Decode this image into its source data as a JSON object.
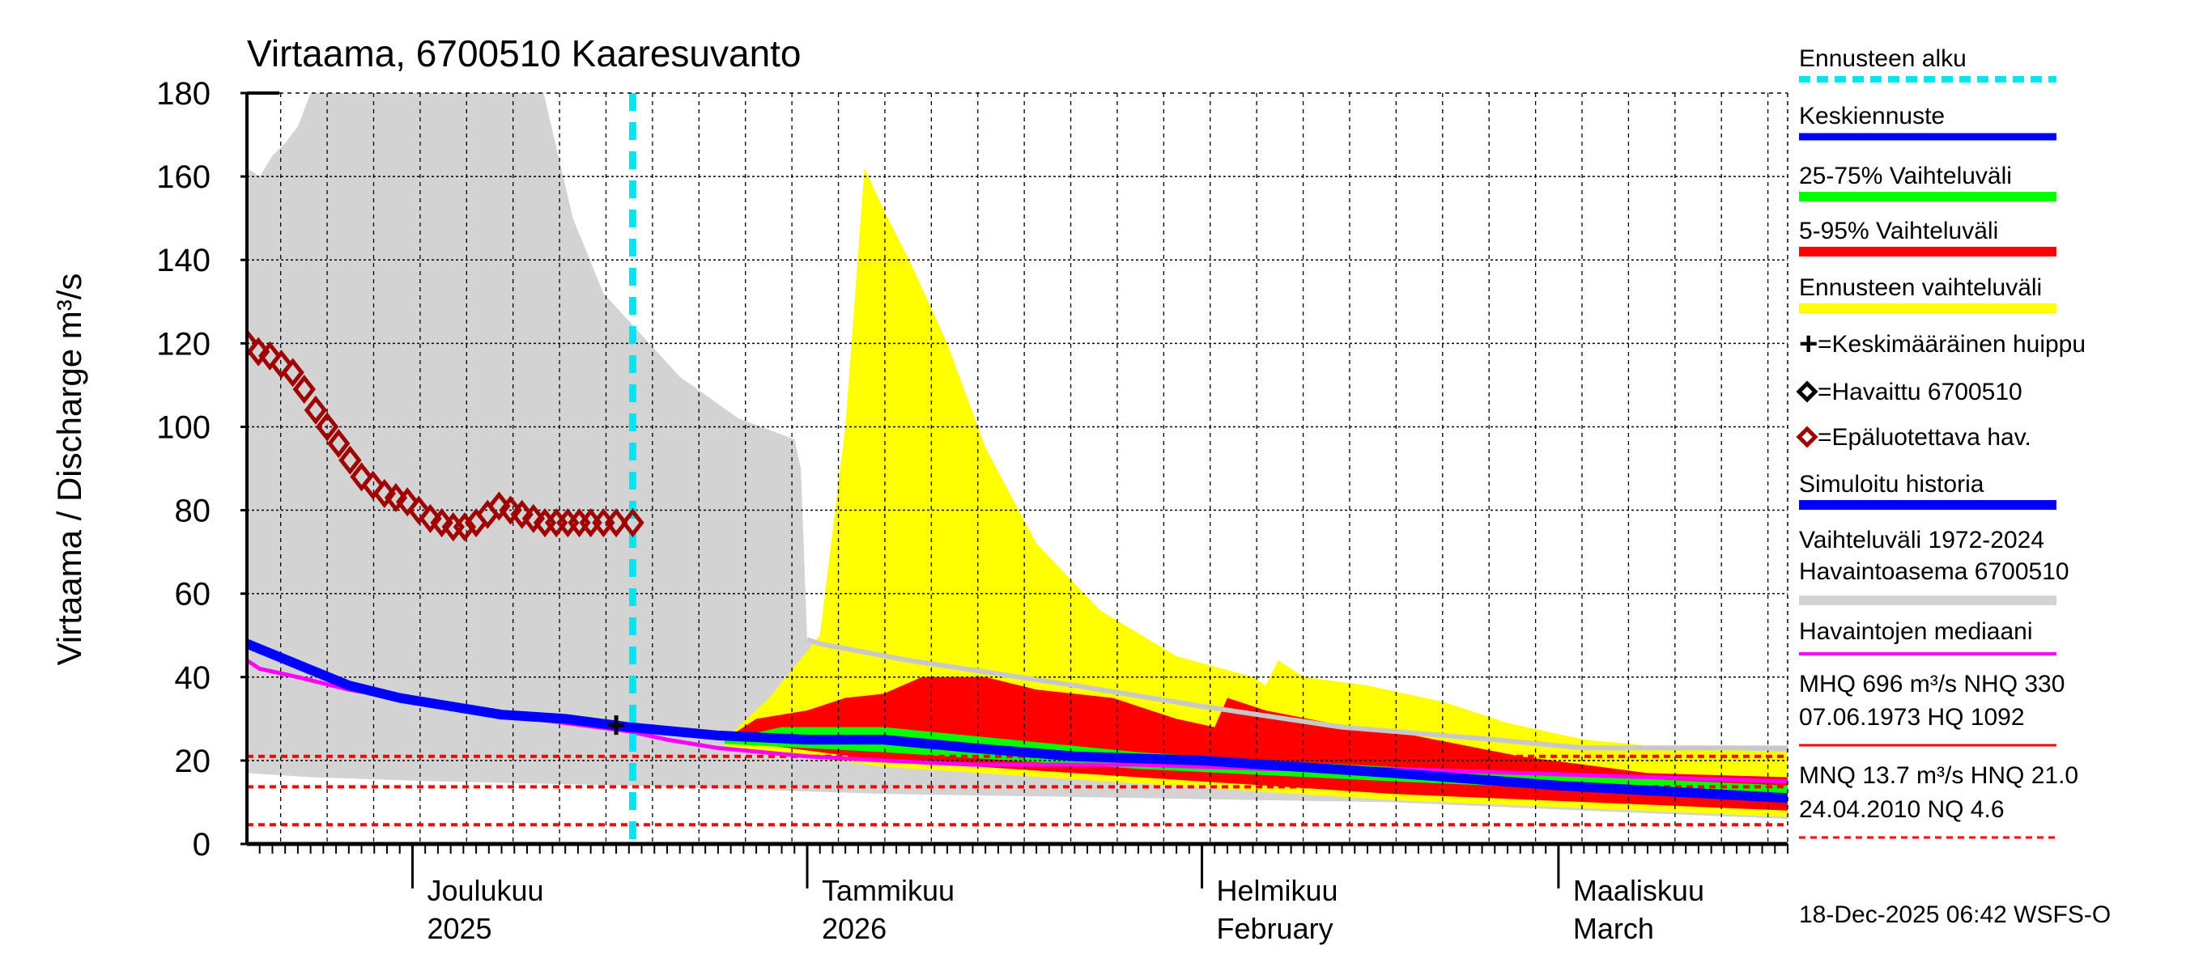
{
  "chart_data": {
    "type": "area",
    "title": "Virtaama, 6700510 Kaaresuvanto",
    "ylabel": "Virtaama / Discharge   m³/s",
    "ylim": [
      0,
      180
    ],
    "yticks": [
      "0",
      "20",
      "40",
      "60",
      "80",
      "100",
      "120",
      "140",
      "160",
      "180"
    ],
    "x_unit": "days since 18-Nov-2025",
    "xlim": [
      0,
      121
    ],
    "months": [
      {
        "day": 13,
        "label1": "Joulukuu",
        "label2": "2025"
      },
      {
        "day": 44,
        "label1": "Tammikuu",
        "label2": "2026"
      },
      {
        "day": 75,
        "label1": "Helmikuu",
        "label2": "February"
      },
      {
        "day": 103,
        "label1": "Maaliskuu",
        "label2": "March"
      }
    ],
    "forecast_start_day": 30.3,
    "reference_lines": [
      {
        "name": "HNQ",
        "value": 21.0
      },
      {
        "name": "MNQ",
        "value": 13.7
      },
      {
        "name": "NQ",
        "value": 4.6
      }
    ],
    "series": [
      {
        "name": "Vaihteluväli 1972-2024 upper",
        "points": [
          [
            0,
            162
          ],
          [
            1,
            160
          ],
          [
            2,
            165
          ],
          [
            3,
            168
          ],
          [
            4,
            172
          ],
          [
            5,
            180
          ],
          [
            23.3,
            180
          ],
          [
            25.6,
            150
          ],
          [
            28,
            132
          ],
          [
            31,
            122
          ],
          [
            34,
            112
          ],
          [
            38.6,
            102
          ],
          [
            43,
            97
          ],
          [
            43.5,
            90
          ],
          [
            44,
            49
          ],
          [
            45,
            48
          ],
          [
            52,
            44
          ],
          [
            65,
            38
          ],
          [
            75,
            33
          ],
          [
            86,
            28
          ],
          [
            98,
            25
          ],
          [
            105,
            23
          ],
          [
            121,
            23
          ]
        ]
      },
      {
        "name": "Vaihteluväli 1972-2024 lower",
        "points": [
          [
            0,
            17
          ],
          [
            5,
            16
          ],
          [
            15,
            15
          ],
          [
            30,
            14
          ],
          [
            50,
            12
          ],
          [
            70,
            11
          ],
          [
            90,
            10
          ],
          [
            105,
            8
          ],
          [
            121,
            6
          ]
        ]
      },
      {
        "name": "Ennusteen vaihteluväli upper",
        "points": [
          [
            37.5,
            25
          ],
          [
            41,
            35
          ],
          [
            45,
            50
          ],
          [
            47,
            100
          ],
          [
            48.5,
            162
          ],
          [
            50,
            152
          ],
          [
            52,
            140
          ],
          [
            55,
            120
          ],
          [
            58,
            95
          ],
          [
            62,
            72
          ],
          [
            67,
            56
          ],
          [
            73,
            45
          ],
          [
            79,
            40
          ],
          [
            80,
            38
          ],
          [
            81,
            44
          ],
          [
            83,
            40
          ],
          [
            88,
            38
          ],
          [
            94,
            34
          ],
          [
            99,
            29
          ],
          [
            105,
            25
          ],
          [
            112,
            23
          ],
          [
            121,
            22
          ]
        ]
      },
      {
        "name": "5-95% upper",
        "points": [
          [
            37.5,
            25
          ],
          [
            40,
            30
          ],
          [
            44,
            32
          ],
          [
            47,
            35
          ],
          [
            50,
            36
          ],
          [
            53,
            40
          ],
          [
            58,
            40
          ],
          [
            62,
            37
          ],
          [
            68,
            35
          ],
          [
            73,
            30
          ],
          [
            76,
            28
          ],
          [
            77,
            35
          ],
          [
            80,
            32
          ],
          [
            85,
            29
          ],
          [
            90,
            27
          ],
          [
            95,
            24
          ],
          [
            100,
            21
          ],
          [
            110,
            17
          ],
          [
            121,
            16
          ]
        ]
      },
      {
        "name": "5-95% lower",
        "points": [
          [
            37.5,
            25
          ],
          [
            50,
            20
          ],
          [
            70,
            16
          ],
          [
            90,
            12
          ],
          [
            121,
            8
          ]
        ]
      },
      {
        "name": "25-75% upper",
        "points": [
          [
            37.5,
            25
          ],
          [
            42,
            28
          ],
          [
            50,
            28
          ],
          [
            60,
            25
          ],
          [
            70,
            22
          ],
          [
            80,
            20
          ],
          [
            100,
            17
          ],
          [
            121,
            14
          ]
        ]
      },
      {
        "name": "25-75% lower",
        "points": [
          [
            37.5,
            24
          ],
          [
            50,
            22
          ],
          [
            70,
            18
          ],
          [
            90,
            15
          ],
          [
            121,
            11
          ]
        ]
      },
      {
        "name": "Keskiennuste",
        "points": [
          [
            0,
            48
          ],
          [
            4,
            43
          ],
          [
            8,
            38
          ],
          [
            12,
            35
          ],
          [
            16,
            33
          ],
          [
            20,
            31
          ],
          [
            25,
            30
          ],
          [
            30,
            28
          ],
          [
            37,
            26
          ],
          [
            44,
            25
          ],
          [
            50,
            25
          ],
          [
            57,
            23
          ],
          [
            65,
            21
          ],
          [
            75,
            20
          ],
          [
            90,
            17
          ],
          [
            103,
            14
          ],
          [
            121,
            11
          ]
        ]
      },
      {
        "name": "Havaintojen mediaani",
        "points": [
          [
            0,
            44
          ],
          [
            1,
            42
          ],
          [
            4,
            40
          ],
          [
            8,
            37
          ],
          [
            12,
            35
          ],
          [
            16,
            33
          ],
          [
            20,
            31
          ],
          [
            25,
            29
          ],
          [
            30,
            27
          ],
          [
            33,
            25
          ],
          [
            37,
            23
          ],
          [
            44,
            21
          ],
          [
            50,
            20
          ],
          [
            57,
            19
          ],
          [
            70,
            19
          ],
          [
            80,
            18
          ],
          [
            90,
            18
          ],
          [
            100,
            17
          ],
          [
            110,
            16
          ],
          [
            121,
            15
          ]
        ]
      },
      {
        "name": "Epäluotettava hav.",
        "points": [
          [
            0,
            120
          ],
          [
            0.9,
            118
          ],
          [
            1.8,
            117
          ],
          [
            2.7,
            115
          ],
          [
            3.6,
            113
          ],
          [
            4.5,
            109
          ],
          [
            5.4,
            104
          ],
          [
            6.3,
            100
          ],
          [
            7.2,
            96
          ],
          [
            8.1,
            92
          ],
          [
            9,
            88
          ],
          [
            9.9,
            86
          ],
          [
            10.8,
            84
          ],
          [
            11.7,
            83
          ],
          [
            12.6,
            82
          ],
          [
            13.5,
            80
          ],
          [
            14.4,
            78
          ],
          [
            15.3,
            77
          ],
          [
            16.2,
            76
          ],
          [
            17.1,
            76
          ],
          [
            18,
            77
          ],
          [
            18.9,
            79
          ],
          [
            19.8,
            81
          ],
          [
            20.7,
            80
          ],
          [
            21.6,
            79
          ],
          [
            22.5,
            78
          ],
          [
            23.4,
            77
          ],
          [
            24.3,
            77
          ],
          [
            25.2,
            77
          ],
          [
            26.1,
            77
          ],
          [
            27,
            77
          ],
          [
            28,
            77
          ],
          [
            29,
            77
          ],
          [
            30.3,
            77
          ]
        ]
      },
      {
        "name": "Keskimääräinen huippu",
        "points": [
          [
            29,
            28.5
          ]
        ]
      }
    ]
  },
  "legend": {
    "forecast_start": "Ennusteen alku",
    "mean_forecast": "Keskiennuste",
    "p25_75": "25-75% Vaihteluväli",
    "p5_95": "5-95% Vaihteluväli",
    "forecast_range": "Ennusteen vaihteluväli",
    "mean_peak": "=Keskimääräinen huippu",
    "observed": "=Havaittu 6700510",
    "unreliable": "=Epäluotettava hav.",
    "simulated": "Simuloitu historia",
    "range_years": "Vaihteluväli 1972-2024",
    "range_station": "Havaintoasema 6700510",
    "median": "Havaintojen mediaani",
    "mhq_line1": "MHQ  696 m³/s NHQ  330",
    "mhq_line2": "07.06.1973 HQ 1092",
    "mnq_line1": "MNQ 13.7 m³/s HNQ 21.0",
    "mnq_line2": "24.04.2010 NQ  4.6"
  },
  "footer": {
    "timestamp": "18-Dec-2025 06:42 WSFS-O"
  },
  "colors": {
    "gray": "#d3d3d3",
    "yellow": "#ffff00",
    "red": "#ff0000",
    "green": "#00ff00",
    "blue": "#0000ff",
    "magenta": "#ff00ff",
    "cyan": "#00e5ee",
    "darkred": "#a00000"
  }
}
